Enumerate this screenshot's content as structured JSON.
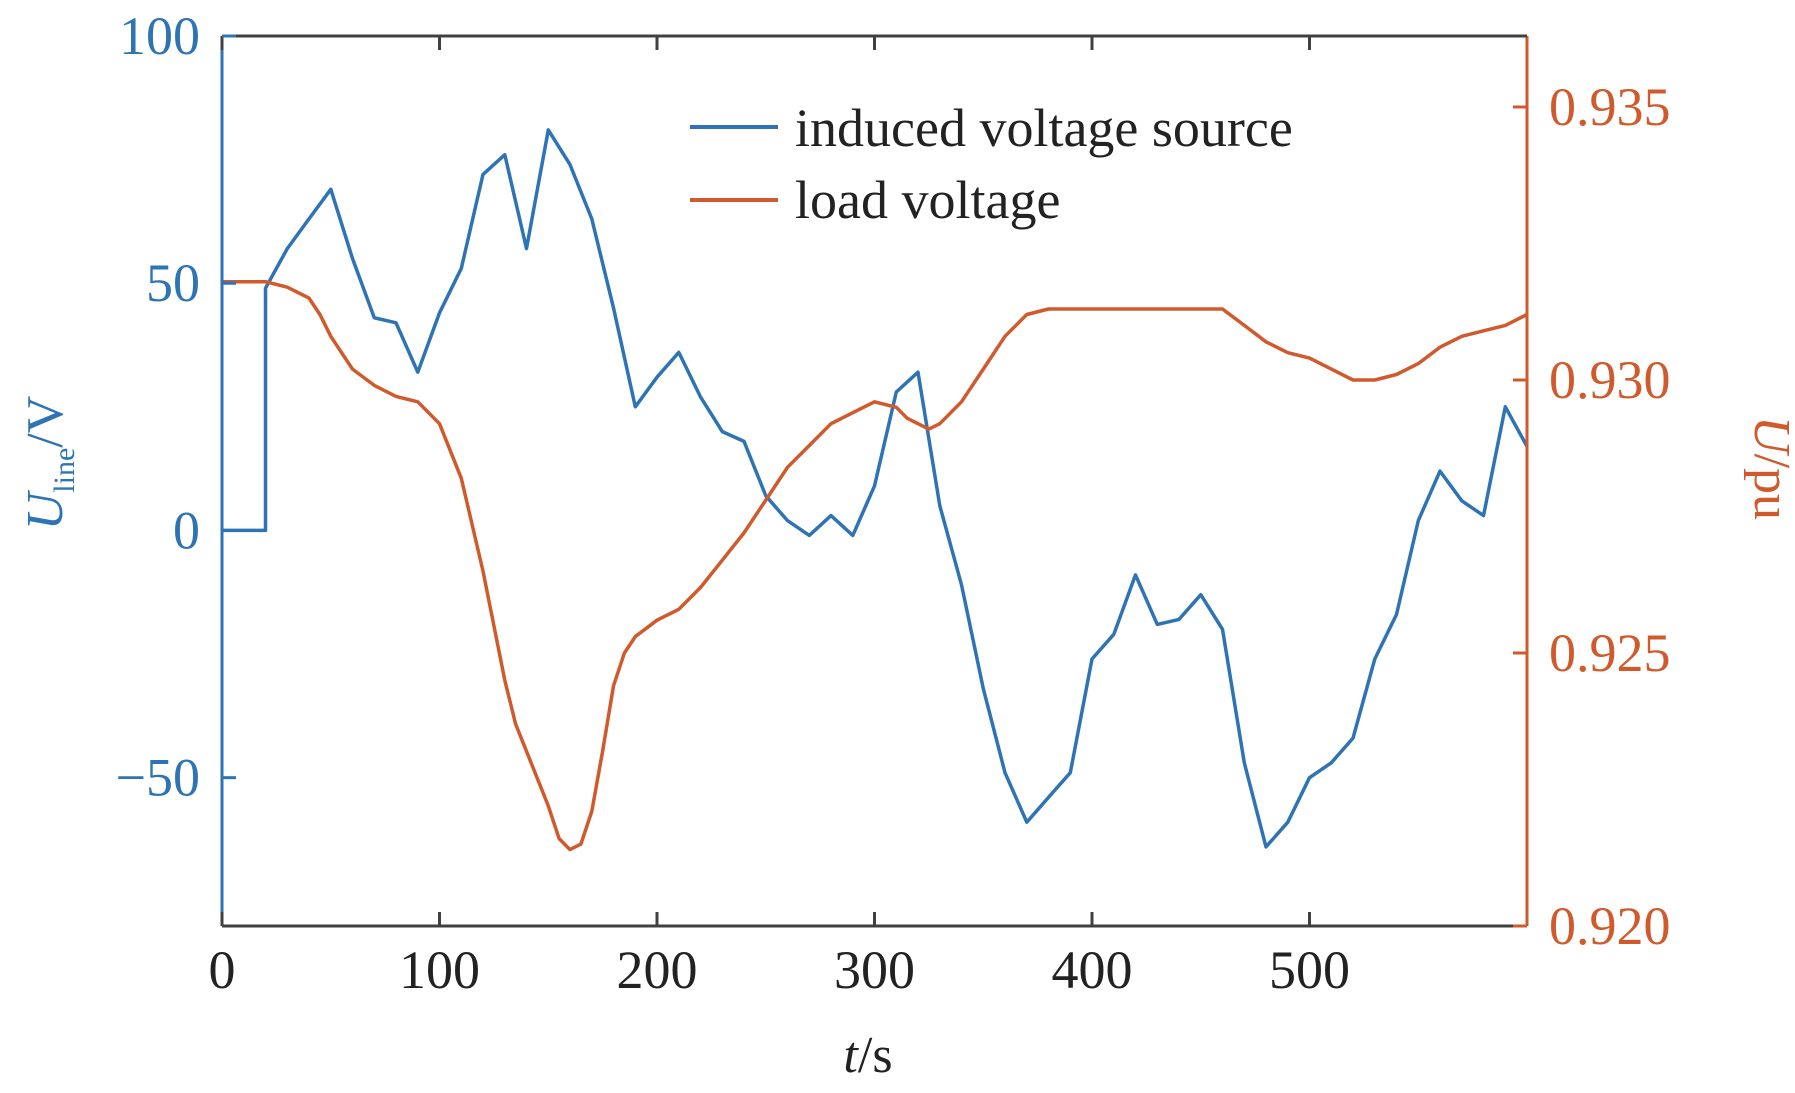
{
  "chart_data": {
    "type": "line",
    "colors": {
      "left": "#2e74b5",
      "right": "#d05a2c",
      "axes": "#404040",
      "text": "#222222"
    },
    "xlabel": {
      "italic": "t",
      "rest": "/s"
    },
    "ylabel_left": {
      "italic": "U",
      "sub": "line",
      "rest": "/V"
    },
    "ylabel_right": {
      "italic": "U",
      "rest": "/pu"
    },
    "xlim": [
      0,
      600
    ],
    "ylim_left": [
      -80,
      100
    ],
    "ylim_right": [
      0.92,
      0.9363
    ],
    "x_ticks": [
      0,
      100,
      200,
      300,
      400,
      500
    ],
    "y_left_ticks": [
      -50,
      0,
      50,
      100
    ],
    "y_left_tick_labels": [
      "−50",
      "0",
      "50",
      "100"
    ],
    "y_right_ticks": [
      0.92,
      0.925,
      0.93,
      0.935
    ],
    "y_right_tick_labels": [
      "0.920",
      "0.925",
      "0.930",
      "0.935"
    ],
    "legend": {
      "placement": "top-center",
      "entries": [
        "induced voltage source",
        "load voltage"
      ]
    },
    "series": [
      {
        "name": "induced voltage source",
        "axis": "left",
        "x": [
          0,
          20,
          20,
          30,
          40,
          50,
          60,
          70,
          80,
          90,
          100,
          110,
          120,
          130,
          140,
          150,
          160,
          170,
          180,
          190,
          200,
          210,
          220,
          230,
          240,
          250,
          260,
          270,
          280,
          290,
          300,
          310,
          320,
          330,
          340,
          350,
          360,
          370,
          380,
          390,
          400,
          410,
          420,
          430,
          440,
          450,
          460,
          470,
          480,
          490,
          500,
          510,
          520,
          530,
          540,
          550,
          560,
          570,
          580,
          590,
          600
        ],
        "y": [
          0,
          0,
          49,
          57,
          63,
          69,
          55,
          43,
          42,
          32,
          44,
          53,
          72,
          76,
          57,
          81,
          74,
          63,
          45,
          25,
          31,
          36,
          27,
          20,
          18,
          7,
          2,
          -1,
          3,
          -1,
          9,
          28,
          32,
          5,
          -11,
          -32,
          -49,
          -59,
          -54,
          -49,
          -26,
          -21,
          -9,
          -19,
          -18,
          -13,
          -20,
          -47,
          -64,
          -59,
          -50,
          -47,
          -42,
          -26,
          -17,
          2,
          12,
          6,
          3,
          25,
          17
        ]
      },
      {
        "name": "load voltage",
        "axis": "right",
        "x": [
          0,
          5,
          10,
          20,
          30,
          40,
          45,
          50,
          55,
          60,
          70,
          80,
          90,
          100,
          110,
          120,
          130,
          135,
          140,
          150,
          155,
          160,
          165,
          170,
          175,
          180,
          185,
          190,
          200,
          210,
          220,
          230,
          240,
          250,
          260,
          270,
          280,
          290,
          300,
          310,
          315,
          320,
          325,
          330,
          340,
          350,
          360,
          370,
          380,
          390,
          400,
          410,
          420,
          430,
          440,
          450,
          460,
          470,
          480,
          490,
          500,
          510,
          520,
          530,
          540,
          550,
          560,
          570,
          580,
          590,
          600
        ],
        "y": [
          0.9318,
          0.9318,
          0.9318,
          0.9318,
          0.9317,
          0.9315,
          0.9312,
          0.9308,
          0.9305,
          0.9302,
          0.9299,
          0.9297,
          0.9296,
          0.9292,
          0.9282,
          0.9265,
          0.9245,
          0.9237,
          0.9232,
          0.9222,
          0.9216,
          0.9214,
          0.9215,
          0.9221,
          0.9232,
          0.9244,
          0.925,
          0.9253,
          0.9256,
          0.9258,
          0.9262,
          0.9267,
          0.9272,
          0.9278,
          0.9284,
          0.9288,
          0.9292,
          0.9294,
          0.9296,
          0.9295,
          0.9293,
          0.9292,
          0.9291,
          0.9292,
          0.9296,
          0.9302,
          0.9308,
          0.9312,
          0.9313,
          0.9313,
          0.9313,
          0.9313,
          0.9313,
          0.9313,
          0.9313,
          0.9313,
          0.9313,
          0.931,
          0.9307,
          0.9305,
          0.9304,
          0.9302,
          0.93,
          0.93,
          0.9301,
          0.9303,
          0.9306,
          0.9308,
          0.9309,
          0.931,
          0.9312
        ]
      }
    ]
  }
}
